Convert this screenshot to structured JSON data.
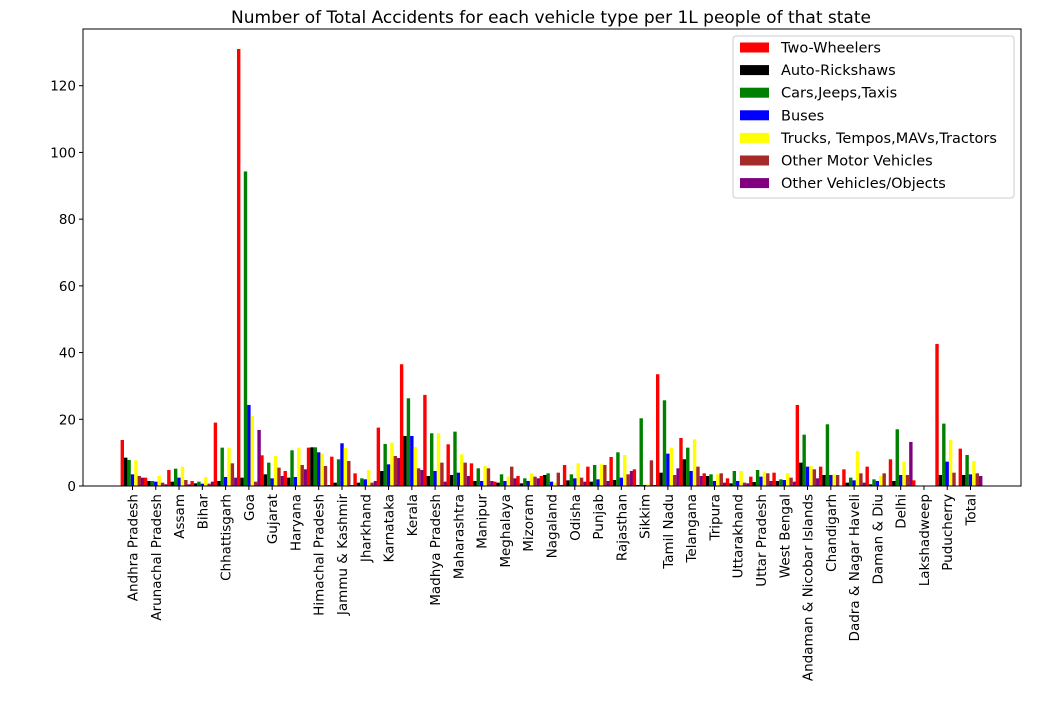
{
  "chart_data": {
    "type": "bar",
    "title": "Number of Total Accidents for each vehicle type per 1L people of that state",
    "xlabel": "",
    "ylabel": "",
    "ylim": [
      0,
      137
    ],
    "yticks": [
      0,
      20,
      40,
      60,
      80,
      100,
      120
    ],
    "legend_position": "top-right",
    "categories": [
      "Andhra Pradesh",
      "Arunachal Pradesh",
      "Assam",
      "Bihar",
      "Chhattisgarh",
      "Goa",
      "Gujarat",
      "Haryana",
      "Himachal Pradesh",
      "Jammu & Kashmir",
      "Jharkhand",
      "Karnataka",
      "Kerala",
      "Madhya Pradesh",
      "Maharashtra",
      "Manipur",
      "Meghalaya",
      "Mizoram",
      "Nagaland",
      "Odisha",
      "Punjab",
      "Rajasthan",
      "Sikkim",
      "Tamil Nadu",
      "Telangana",
      "Tripura",
      "Uttarakhand",
      "Uttar Pradesh",
      "West Bengal",
      "Andaman & Nicobar Islands",
      "Chandigarh",
      "Dadra & Nagar Haveli",
      "Daman & Diu",
      "Delhi",
      "Lakshadweep",
      "Puducherry",
      "Total"
    ],
    "series": [
      {
        "name": "Two-Wheelers",
        "color": "#ff0000",
        "values": [
          13.8,
          2.5,
          4.8,
          1.5,
          19,
          131,
          9.2,
          4.5,
          11.5,
          8.8,
          3.8,
          17.5,
          36.5,
          27.3,
          12.5,
          6.8,
          1.3,
          3,
          3,
          6.3,
          5.8,
          8.7,
          5,
          33.5,
          14.4,
          3.8,
          2.3,
          2.8,
          4,
          24.3,
          5.8,
          5,
          5.8,
          8,
          1.7,
          42.6,
          11.2
        ]
      },
      {
        "name": "Auto-Rickshaws",
        "color": "#000000",
        "values": [
          8.5,
          1.5,
          1.3,
          0.8,
          1.5,
          2.5,
          3.5,
          2.5,
          11.6,
          1,
          1,
          4.5,
          15,
          3,
          3.3,
          1.5,
          1,
          0.8,
          3.3,
          1.7,
          1.3,
          1.8,
          0.3,
          4,
          8,
          3,
          0.8,
          1.2,
          1.5,
          7,
          3.3,
          1,
          0.5,
          1.5,
          0,
          3.3,
          3.3
        ]
      },
      {
        "name": "Cars,Jeeps,Taxis",
        "color": "#008000",
        "values": [
          7.8,
          1.5,
          5.2,
          1.3,
          11.5,
          94.3,
          7,
          10.7,
          11.6,
          8,
          2.3,
          12.6,
          26.3,
          15.8,
          16.3,
          5.3,
          3.5,
          2.3,
          3.8,
          3.5,
          6.3,
          10.1,
          20.3,
          25.7,
          11.5,
          3.5,
          4.5,
          4.8,
          2,
          15.4,
          18.5,
          2.5,
          2,
          17,
          0,
          18.7,
          9.3
        ]
      },
      {
        "name": "Buses",
        "color": "#0000ff",
        "values": [
          3.5,
          1.3,
          2.5,
          0.7,
          2.7,
          24.3,
          2.3,
          2.7,
          10.1,
          12.8,
          2,
          6.5,
          15,
          4.5,
          4,
          1.5,
          1.5,
          1.5,
          1.3,
          2.3,
          2,
          2.5,
          0.3,
          9.7,
          4.5,
          1.5,
          1.5,
          2.8,
          1.8,
          5.8,
          3.3,
          1.7,
          1.5,
          3.3,
          0,
          7.3,
          3.5
        ]
      },
      {
        "name": "Trucks, Tempos,MAVs,Tractors",
        "color": "#ffff00",
        "values": [
          7.7,
          3,
          5.8,
          2.7,
          11.5,
          21,
          9,
          11.5,
          9.7,
          11.4,
          4.8,
          13,
          11.7,
          15.8,
          9.5,
          6,
          2.8,
          3.8,
          1,
          6.8,
          6.5,
          9.3,
          0.5,
          11.5,
          14,
          3.5,
          4.5,
          4.3,
          3.8,
          6,
          3.5,
          10.5,
          3,
          7.3,
          0,
          13.8,
          7.5
        ]
      },
      {
        "name": "Other Motor Vehicles",
        "color": "#a52a2a",
        "values": [
          3,
          1,
          1.8,
          0.7,
          6.8,
          1.3,
          5.5,
          6.3,
          6,
          7.5,
          1,
          9,
          5.3,
          7,
          7,
          5.3,
          5.8,
          2.8,
          4,
          2.5,
          6.3,
          3.5,
          7.7,
          3.3,
          5.8,
          3.8,
          1,
          3.8,
          2.5,
          5,
          3.3,
          3.8,
          3.8,
          3.3,
          0,
          4,
          3.8
        ]
      },
      {
        "name": "Other Vehicles/Objects",
        "color": "#800080",
        "values": [
          2.5,
          0.5,
          0.5,
          1.3,
          2.5,
          16.8,
          3,
          5,
          0.3,
          0.3,
          1.5,
          8.4,
          4.8,
          1.3,
          3,
          1.5,
          2.3,
          2.3,
          0.3,
          1.3,
          1.5,
          4.5,
          0.3,
          5.3,
          3,
          1,
          0.8,
          1.5,
          1.3,
          2.3,
          0,
          1,
          0,
          13.2,
          0,
          0,
          3
        ]
      }
    ]
  }
}
